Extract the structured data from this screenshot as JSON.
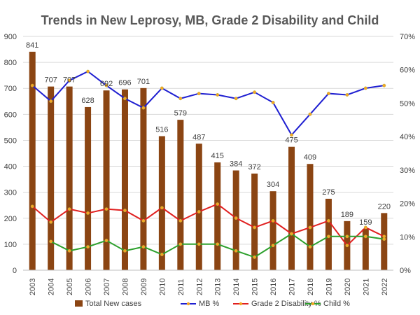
{
  "chart_data": {
    "type": "bar",
    "title": "Trends in New Leprosy, MB, Grade 2 Disability and Child",
    "categories": [
      "2003",
      "2004",
      "2005",
      "2006",
      "2007",
      "2008",
      "2009",
      "2010",
      "2011",
      "2012",
      "2013",
      "2014",
      "2015",
      "2016",
      "2017",
      "2018",
      "2019",
      "2020",
      "2021",
      "2022"
    ],
    "ylim": [
      0,
      900
    ],
    "y_ticks": [
      "0",
      "100",
      "200",
      "300",
      "400",
      "500",
      "600",
      "700",
      "800",
      "900"
    ],
    "y2lim": [
      0,
      70
    ],
    "y2_ticks": [
      "0%",
      "10%",
      "20%",
      "30%",
      "40%",
      "50%",
      "60%",
      "70%"
    ],
    "grid": true,
    "legend_position": "bottom",
    "bar_series": {
      "name": "Total New cases",
      "color": "#8B4513",
      "values": [
        841,
        707,
        707,
        628,
        692,
        696,
        701,
        516,
        579,
        487,
        415,
        384,
        372,
        304,
        475,
        409,
        275,
        189,
        159,
        220
      ],
      "labels": [
        "841",
        "707",
        "707",
        "628",
        "692",
        "696",
        "701",
        "516",
        "579",
        "487",
        "415",
        "384",
        "372",
        "304",
        "475",
        "409",
        "275",
        "189",
        "159",
        "220"
      ]
    },
    "series": [
      {
        "name": "MB %",
        "color": "#1f1fd1",
        "axis": "secondary",
        "values": [
          55.3,
          50.6,
          56.8,
          59.5,
          55.3,
          51.4,
          48.6,
          54.5,
          51.4,
          52.9,
          52.5,
          51.4,
          53.3,
          50.2,
          40.5,
          46.7,
          52.9,
          52.5,
          54.5,
          55.3
        ]
      },
      {
        "name": "Grade 2 Disability %",
        "color": "#e02020",
        "axis": "secondary",
        "values": [
          19.1,
          14.4,
          18.3,
          17.1,
          18.3,
          17.9,
          14.8,
          18.7,
          14.8,
          17.5,
          19.8,
          15.6,
          12.8,
          14.8,
          10.9,
          12.8,
          14.8,
          7.4,
          12.8,
          10.1
        ]
      },
      {
        "name": "Child %",
        "color": "#2ca02c",
        "axis": "secondary",
        "values": null,
        "values_from_2004": [
          8.6,
          5.8,
          7.0,
          8.9,
          5.8,
          7.0,
          4.7,
          7.8,
          7.8,
          7.8,
          5.8,
          3.9,
          7.4,
          10.9,
          7.0,
          10.1,
          10.1,
          10.1,
          9.3
        ]
      }
    ]
  }
}
